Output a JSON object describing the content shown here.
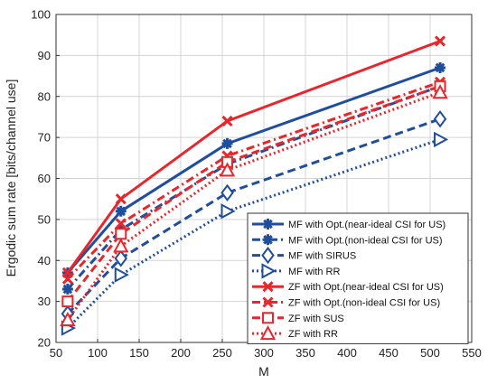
{
  "chart_data": {
    "type": "line",
    "title": "",
    "xlabel": "M",
    "ylabel": "Ergodic sum rate [bits/channel use]",
    "xlim": [
      50,
      550
    ],
    "ylim": [
      20,
      100
    ],
    "xticks": [
      50,
      100,
      150,
      200,
      250,
      300,
      350,
      400,
      450,
      500,
      550
    ],
    "yticks": [
      20,
      30,
      40,
      50,
      60,
      70,
      80,
      90,
      100
    ],
    "grid": true,
    "legend_position": "bottom-right",
    "x": [
      64,
      128,
      256,
      512
    ],
    "series": [
      {
        "name": "MF with Opt.(near-ideal CSI for US)",
        "values": [
          37,
          52,
          68.5,
          87
        ],
        "color": "#1f4e9c",
        "dash": "solid",
        "marker": "asterisk"
      },
      {
        "name": "MF with Opt.(non-ideal CSI for US)",
        "values": [
          33,
          47.5,
          63.5,
          82.5
        ],
        "color": "#1f4e9c",
        "dash": "dashdot",
        "marker": "asterisk"
      },
      {
        "name": "MF with SIRUS",
        "values": [
          27,
          40.5,
          56.5,
          74.5
        ],
        "color": "#1f4e9c",
        "dash": "dashed",
        "marker": "diamond"
      },
      {
        "name": "MF with RR",
        "values": [
          23.5,
          36.5,
          52,
          69.5
        ],
        "color": "#1f4e9c",
        "dash": "dotted",
        "marker": "triangle-right"
      },
      {
        "name": "ZF with Opt.(near-ideal CSI for US)",
        "values": [
          37,
          55,
          74,
          93.5
        ],
        "color": "#e8262c",
        "dash": "solid",
        "marker": "x"
      },
      {
        "name": "ZF with Opt.(non-ideal CSI for US)",
        "values": [
          35.5,
          49,
          65.5,
          83.5
        ],
        "color": "#e8262c",
        "dash": "dashdot",
        "marker": "x"
      },
      {
        "name": "ZF with SUS",
        "values": [
          30,
          46.5,
          64,
          82.5
        ],
        "color": "#e8262c",
        "dash": "dashed",
        "marker": "square"
      },
      {
        "name": "ZF with RR",
        "values": [
          25.5,
          43.5,
          62,
          81
        ],
        "color": "#e8262c",
        "dash": "dotted",
        "marker": "triangle-up"
      }
    ]
  }
}
